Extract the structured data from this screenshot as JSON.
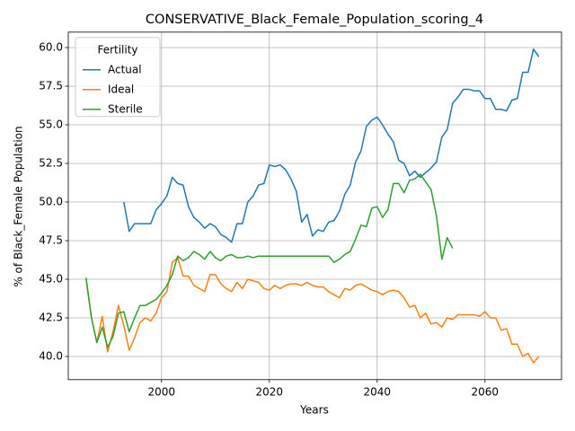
{
  "chart_data": {
    "type": "line",
    "title": "CONSERVATIVE_Black_Female_Population_scoring_4",
    "x_label": "Years",
    "y_label": "% of Black_Female Population",
    "legend_title": "Fertility",
    "legend": "upper left",
    "grid": true,
    "x": [
      1986,
      1987,
      1988,
      1989,
      1990,
      1991,
      1992,
      1993,
      1994,
      1995,
      1996,
      1997,
      1998,
      1999,
      2000,
      2001,
      2002,
      2003,
      2004,
      2005,
      2006,
      2007,
      2008,
      2009,
      2010,
      2011,
      2012,
      2013,
      2014,
      2015,
      2016,
      2017,
      2018,
      2019,
      2020,
      2021,
      2022,
      2023,
      2024,
      2025,
      2026,
      2027,
      2028,
      2029,
      2030,
      2031,
      2032,
      2033,
      2034,
      2035,
      2036,
      2037,
      2038,
      2039,
      2040,
      2041,
      2042,
      2043,
      2044,
      2045,
      2046,
      2047,
      2048,
      2049,
      2050,
      2051,
      2052,
      2053,
      2054,
      2055,
      2056,
      2057,
      2058,
      2059,
      2060,
      2061,
      2062,
      2063,
      2064,
      2065,
      2066,
      2067,
      2068,
      2069,
      2070
    ],
    "series": [
      {
        "name": "Actual",
        "color": "#1f77b4",
        "values": [
          null,
          null,
          null,
          null,
          null,
          null,
          null,
          50.0,
          48.1,
          48.6,
          48.6,
          48.6,
          48.6,
          49.5,
          49.9,
          50.4,
          51.6,
          51.2,
          51.1,
          49.7,
          49.0,
          48.7,
          48.3,
          48.6,
          48.4,
          47.9,
          47.7,
          47.4,
          48.6,
          48.6,
          50.0,
          50.4,
          51.1,
          51.2,
          52.4,
          52.3,
          52.4,
          52.1,
          51.5,
          50.7,
          48.7,
          49.2,
          47.8,
          48.2,
          48.1,
          48.7,
          48.8,
          49.4,
          50.5,
          51.1,
          52.6,
          53.3,
          54.9,
          55.3,
          55.5,
          55.0,
          54.4,
          53.9,
          52.7,
          52.5,
          51.7,
          52.0,
          51.6,
          51.9,
          52.2,
          52.6,
          54.2,
          54.7,
          56.4,
          56.8,
          57.3,
          57.3,
          57.2,
          57.2,
          56.7,
          56.7,
          56.0,
          56.0,
          55.9,
          56.6,
          56.7,
          58.4,
          58.4,
          59.9,
          59.4
        ]
      },
      {
        "name": "Ideal",
        "color": "#ff7f0e",
        "values": [
          45.0,
          42.5,
          40.9,
          42.6,
          40.3,
          41.6,
          43.3,
          42.0,
          40.4,
          41.2,
          42.2,
          42.5,
          42.3,
          42.8,
          43.8,
          44.2,
          46.1,
          46.4,
          45.2,
          45.2,
          44.6,
          44.4,
          44.2,
          45.3,
          45.3,
          44.7,
          44.4,
          44.2,
          44.8,
          44.4,
          45.0,
          44.9,
          44.8,
          44.4,
          44.3,
          44.6,
          44.4,
          44.6,
          44.7,
          44.7,
          44.6,
          44.8,
          44.6,
          44.5,
          44.5,
          44.2,
          44.0,
          43.8,
          44.4,
          44.3,
          44.6,
          44.7,
          44.5,
          44.3,
          44.2,
          44.0,
          44.2,
          44.3,
          44.2,
          43.8,
          43.2,
          43.3,
          42.5,
          42.8,
          42.1,
          42.2,
          41.9,
          42.5,
          42.4,
          42.7,
          42.7,
          42.7,
          42.7,
          42.6,
          42.9,
          42.5,
          42.5,
          41.7,
          41.8,
          40.8,
          40.8,
          40.0,
          40.2,
          39.6,
          40.0
        ]
      },
      {
        "name": "Sterile",
        "color": "#2ca02c",
        "values": [
          45.1,
          42.5,
          40.9,
          41.9,
          40.6,
          41.3,
          42.8,
          42.9,
          41.6,
          42.5,
          43.3,
          43.3,
          43.5,
          43.7,
          44.1,
          44.6,
          45.3,
          46.5,
          46.2,
          46.4,
          46.8,
          46.6,
          46.3,
          46.8,
          46.4,
          46.2,
          46.5,
          46.6,
          46.4,
          46.4,
          46.5,
          46.4,
          46.5,
          46.5,
          46.5,
          46.5,
          46.5,
          46.5,
          46.5,
          46.5,
          46.5,
          46.5,
          46.5,
          46.5,
          46.5,
          46.5,
          46.1,
          46.3,
          46.6,
          46.8,
          47.6,
          48.5,
          48.4,
          49.6,
          49.7,
          49.0,
          49.5,
          51.2,
          51.2,
          50.6,
          51.4,
          51.5,
          51.8,
          51.3,
          50.8,
          49.1,
          46.3,
          47.7,
          47.0,
          null,
          null,
          null,
          null,
          null,
          null,
          null,
          null,
          null,
          null,
          null,
          null,
          null,
          null,
          null,
          null
        ]
      }
    ],
    "xlim": [
      1982.7,
      2074.2
    ],
    "xticks": [
      2000,
      2020,
      2040,
      2060
    ],
    "ylim": [
      38.5,
      61.0
    ],
    "yticks": [
      {
        "value": 40,
        "label": "40.0"
      },
      42.5,
      {
        "value": 45,
        "label": "45.0"
      },
      47.5,
      {
        "value": 50,
        "label": "50.0"
      },
      52.5,
      {
        "value": 55,
        "label": "55.0"
      },
      57.5,
      {
        "value": 60,
        "label": "60.0"
      }
    ]
  }
}
